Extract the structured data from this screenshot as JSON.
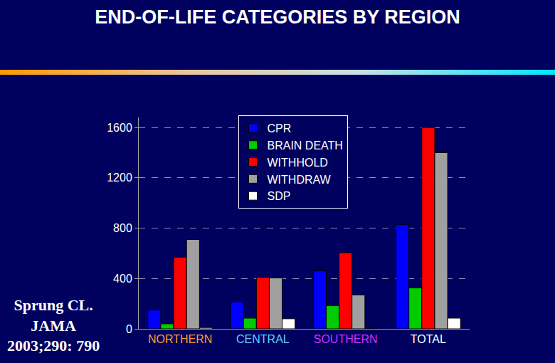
{
  "chart_data": {
    "type": "bar",
    "title": "END-OF-LIFE CATEGORIES BY REGION",
    "categories": [
      "NORTHERN",
      "CENTRAL",
      "SOUTHERN",
      "TOTAL"
    ],
    "series": [
      {
        "name": "CPR",
        "color": "#0000ff",
        "values": [
          150,
          215,
          460,
          830
        ]
      },
      {
        "name": "BRAIN DEATH",
        "color": "#00cc00",
        "values": [
          40,
          85,
          185,
          325
        ]
      },
      {
        "name": "WITHHOLD",
        "color": "#ff0000",
        "values": [
          570,
          410,
          605,
          1600
        ]
      },
      {
        "name": "WITHDRAW",
        "color": "#a0a0a0",
        "values": [
          710,
          405,
          270,
          1400
        ]
      },
      {
        "name": "SDP",
        "color": "#ffffff",
        "values": [
          10,
          80,
          0,
          85
        ]
      }
    ],
    "ylim": [
      0,
      1680
    ],
    "yticks": [
      0,
      400,
      800,
      1200,
      1600
    ],
    "grid": true,
    "legend": "top",
    "annotations": [
      "Sprung CL.",
      "JAMA",
      "2003;290: 790"
    ]
  }
}
